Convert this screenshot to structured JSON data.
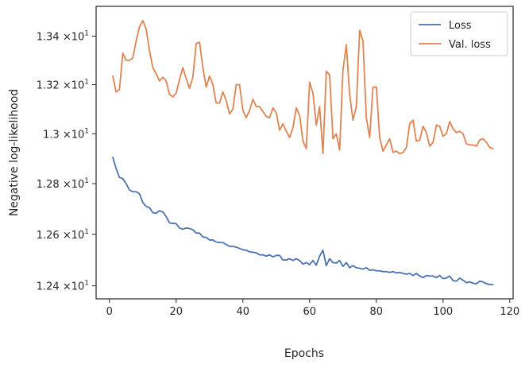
{
  "chart_data": {
    "type": "line",
    "xlabel": "Epochs",
    "ylabel": "Negative log-likelihood",
    "xlim": [
      -4,
      121
    ],
    "ylim": [
      12.35,
      13.525
    ],
    "yscale": "log",
    "grid": false,
    "legend_position": "top-right",
    "x_ticks": [
      0,
      20,
      40,
      60,
      80,
      100,
      120
    ],
    "x_tick_labels": [
      "0",
      "20",
      "40",
      "60",
      "80",
      "100",
      "120"
    ],
    "y_ticks": [
      12.4,
      12.6,
      12.8,
      13.0,
      13.2,
      13.4
    ],
    "y_tick_labels": [
      {
        "mantissa": "1.24",
        "sep": "×10",
        "exp": "1"
      },
      {
        "mantissa": "1.26",
        "sep": "×10",
        "exp": "1"
      },
      {
        "mantissa": "1.28",
        "sep": "×10",
        "exp": "1"
      },
      {
        "mantissa": "1.3",
        "sep": "×10",
        "exp": "1"
      },
      {
        "mantissa": "1.32",
        "sep": "×10",
        "exp": "1"
      },
      {
        "mantissa": "1.34",
        "sep": "×10",
        "exp": "1"
      }
    ],
    "series": [
      {
        "name": "Loss",
        "color": "#4c72b0",
        "x": [
          1,
          2,
          3,
          4,
          5,
          6,
          7,
          8,
          9,
          10,
          11,
          12,
          13,
          14,
          15,
          16,
          17,
          18,
          19,
          20,
          21,
          22,
          23,
          24,
          25,
          26,
          27,
          28,
          29,
          30,
          31,
          32,
          33,
          34,
          35,
          36,
          37,
          38,
          39,
          40,
          41,
          42,
          43,
          44,
          45,
          46,
          47,
          48,
          49,
          50,
          51,
          52,
          53,
          54,
          55,
          56,
          57,
          58,
          59,
          60,
          61,
          62,
          63,
          64,
          65,
          66,
          67,
          68,
          69,
          70,
          71,
          72,
          73,
          74,
          75,
          76,
          77,
          78,
          79,
          80,
          81,
          82,
          83,
          84,
          85,
          86,
          87,
          88,
          89,
          90,
          91,
          92,
          93,
          94,
          95,
          96,
          97,
          98,
          99,
          100,
          101,
          102,
          103,
          104,
          105,
          106,
          107,
          108,
          109,
          110,
          111,
          112,
          113,
          114,
          115
        ],
        "y": [
          12.905,
          12.86,
          12.825,
          12.82,
          12.8,
          12.775,
          12.768,
          12.768,
          12.76,
          12.725,
          12.71,
          12.705,
          12.685,
          12.683,
          12.693,
          12.688,
          12.67,
          12.645,
          12.643,
          12.642,
          12.625,
          12.62,
          12.625,
          12.623,
          12.618,
          12.605,
          12.605,
          12.59,
          12.588,
          12.578,
          12.578,
          12.57,
          12.568,
          12.568,
          12.56,
          12.553,
          12.553,
          12.55,
          12.545,
          12.54,
          12.538,
          12.532,
          12.53,
          12.528,
          12.52,
          12.52,
          12.515,
          12.52,
          12.512,
          12.518,
          12.518,
          12.5,
          12.5,
          12.505,
          12.498,
          12.505,
          12.498,
          12.484,
          12.49,
          12.482,
          12.498,
          12.48,
          12.515,
          12.538,
          12.478,
          12.505,
          12.49,
          12.488,
          12.498,
          12.475,
          12.49,
          12.47,
          12.478,
          12.47,
          12.468,
          12.465,
          12.47,
          12.46,
          12.462,
          12.458,
          12.458,
          12.455,
          12.455,
          12.452,
          12.455,
          12.45,
          12.452,
          12.448,
          12.445,
          12.448,
          12.44,
          12.448,
          12.438,
          12.432,
          12.44,
          12.438,
          12.438,
          12.432,
          12.44,
          12.428,
          12.43,
          12.438,
          12.42,
          12.418,
          12.43,
          12.422,
          12.412,
          12.415,
          12.41,
          12.408,
          12.418,
          12.415,
          12.408,
          12.405,
          12.405
        ]
      },
      {
        "name": "Val. loss",
        "color": "#dd8452",
        "x": [
          1,
          2,
          3,
          4,
          5,
          6,
          7,
          8,
          9,
          10,
          11,
          12,
          13,
          14,
          15,
          16,
          17,
          18,
          19,
          20,
          21,
          22,
          23,
          24,
          25,
          26,
          27,
          28,
          29,
          30,
          31,
          32,
          33,
          34,
          35,
          36,
          37,
          38,
          39,
          40,
          41,
          42,
          43,
          44,
          45,
          46,
          47,
          48,
          49,
          50,
          51,
          52,
          53,
          54,
          55,
          56,
          57,
          58,
          59,
          60,
          61,
          62,
          63,
          64,
          65,
          66,
          67,
          68,
          69,
          70,
          71,
          72,
          73,
          74,
          75,
          76,
          77,
          78,
          79,
          80,
          81,
          82,
          83,
          84,
          85,
          86,
          87,
          88,
          89,
          90,
          91,
          92,
          93,
          94,
          95,
          96,
          97,
          98,
          99,
          100,
          101,
          102,
          103,
          104,
          105,
          106,
          107,
          108,
          109,
          110,
          111,
          112,
          113,
          114,
          115
        ],
        "y": [
          13.235,
          13.17,
          13.18,
          13.33,
          13.3,
          13.3,
          13.31,
          13.38,
          13.44,
          13.465,
          13.43,
          13.34,
          13.27,
          13.245,
          13.215,
          13.23,
          13.215,
          13.16,
          13.15,
          13.165,
          13.22,
          13.27,
          13.225,
          13.185,
          13.23,
          13.37,
          13.375,
          13.27,
          13.19,
          13.235,
          13.2,
          13.125,
          13.125,
          13.17,
          13.135,
          13.08,
          13.1,
          13.2,
          13.2,
          13.095,
          13.065,
          13.095,
          13.14,
          13.11,
          13.11,
          13.09,
          13.07,
          13.065,
          13.105,
          13.085,
          13.015,
          13.04,
          13.01,
          12.985,
          13.025,
          13.105,
          13.075,
          12.97,
          12.94,
          13.21,
          13.165,
          13.035,
          13.11,
          12.92,
          13.255,
          13.24,
          12.98,
          13.0,
          12.935,
          13.26,
          13.365,
          13.16,
          13.055,
          13.11,
          13.425,
          13.38,
          13.065,
          12.985,
          13.19,
          13.19,
          12.985,
          12.93,
          12.955,
          12.98,
          12.925,
          12.93,
          12.92,
          12.925,
          12.945,
          13.04,
          13.055,
          12.97,
          12.975,
          13.03,
          13.005,
          12.95,
          12.965,
          13.035,
          13.03,
          12.99,
          13.0,
          13.05,
          13.02,
          13.005,
          13.01,
          13.0,
          12.96,
          12.955,
          12.955,
          12.95,
          12.975,
          12.98,
          12.965,
          12.945,
          12.94
        ]
      }
    ]
  }
}
